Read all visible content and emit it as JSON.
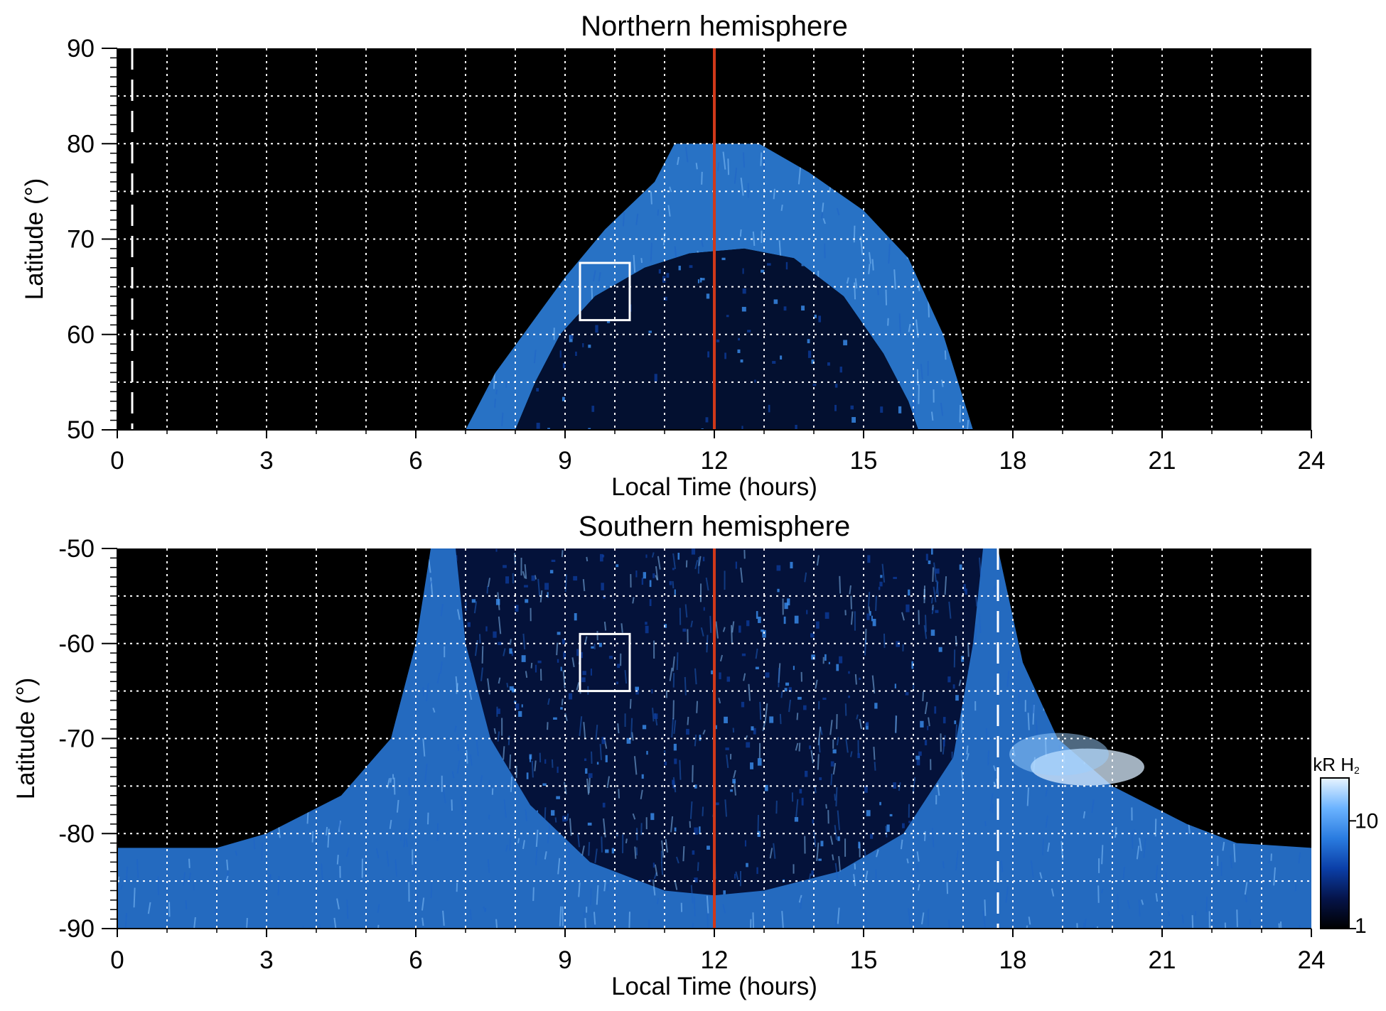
{
  "chart_data": [
    {
      "type": "heatmap",
      "title": "Northern hemisphere",
      "xlabel": "Local Time (hours)",
      "ylabel": "Latitude (°)",
      "xlim": [
        0,
        24
      ],
      "ylim": [
        50,
        90
      ],
      "xticks": [
        0,
        3,
        6,
        9,
        12,
        15,
        18,
        21,
        24
      ],
      "xtick_labels": [
        "0",
        "3",
        "6",
        "9",
        "12",
        "15",
        "18",
        "21",
        "24"
      ],
      "yticks": [
        50,
        60,
        70,
        80,
        90
      ],
      "ytick_labels": [
        "50",
        "60",
        "70",
        "80",
        "90"
      ],
      "grid": true,
      "grid_x_step": 1,
      "grid_y_step": 5,
      "background_color": "#000000",
      "auroral_oval": {
        "description_free": true,
        "outer_edge": [
          [
            7.0,
            50
          ],
          [
            7.6,
            56
          ],
          [
            8.3,
            61
          ],
          [
            9.0,
            66
          ],
          [
            9.8,
            71
          ],
          [
            10.8,
            76
          ],
          [
            11.2,
            80
          ],
          [
            12.0,
            80
          ],
          [
            12.9,
            80
          ],
          [
            13.9,
            77
          ],
          [
            15.0,
            73
          ],
          [
            15.9,
            68
          ],
          [
            16.6,
            60
          ],
          [
            17.2,
            50
          ]
        ],
        "inner_edge": [
          [
            8.0,
            50
          ],
          [
            8.4,
            55
          ],
          [
            8.9,
            60
          ],
          [
            9.6,
            64
          ],
          [
            10.6,
            67
          ],
          [
            11.5,
            68.5
          ],
          [
            12.6,
            69
          ],
          [
            13.6,
            68
          ],
          [
            14.6,
            64
          ],
          [
            15.4,
            58
          ],
          [
            15.9,
            53
          ],
          [
            16.1,
            50
          ]
        ],
        "oval_color": "#2f86e8",
        "bright_color": "#8cc8ff"
      },
      "noon_line": {
        "x": 12,
        "color": "#d0391a"
      },
      "dashed_line": {
        "x": 0.3,
        "y_range": [
          50,
          90
        ],
        "color": "#ffffff"
      },
      "box": {
        "x": [
          9.3,
          10.3
        ],
        "y": [
          61.5,
          67.5
        ],
        "color": "#ffffff"
      }
    },
    {
      "type": "heatmap",
      "title": "Southern hemisphere",
      "xlabel": "Local Time (hours)",
      "ylabel": "Latitude (°)",
      "xlim": [
        0,
        24
      ],
      "ylim": [
        -90,
        -50
      ],
      "xticks": [
        0,
        3,
        6,
        9,
        12,
        15,
        18,
        21,
        24
      ],
      "xtick_labels": [
        "0",
        "3",
        "6",
        "9",
        "12",
        "15",
        "18",
        "21",
        "24"
      ],
      "yticks": [
        -90,
        -80,
        -70,
        -60,
        -50
      ],
      "ytick_labels": [
        "-90",
        "-80",
        "-70",
        "-60",
        "-50"
      ],
      "grid": true,
      "grid_x_step": 1,
      "grid_y_step": 5,
      "background_color": "#000000",
      "auroral_oval": {
        "outer_edge": [
          [
            0.0,
            -81.5
          ],
          [
            2.0,
            -81.5
          ],
          [
            3.0,
            -80
          ],
          [
            4.5,
            -76
          ],
          [
            5.5,
            -70
          ],
          [
            6.0,
            -60
          ],
          [
            6.3,
            -50
          ],
          [
            17.7,
            -50
          ],
          [
            18.2,
            -62
          ],
          [
            18.9,
            -70
          ],
          [
            20.0,
            -75
          ],
          [
            21.5,
            -79
          ],
          [
            22.5,
            -81
          ],
          [
            24.0,
            -81.5
          ]
        ],
        "inner_edge": [
          [
            6.8,
            -50
          ],
          [
            7.0,
            -60
          ],
          [
            7.5,
            -70
          ],
          [
            8.3,
            -77
          ],
          [
            9.5,
            -83
          ],
          [
            11.0,
            -86
          ],
          [
            12.0,
            -86.5
          ],
          [
            13.0,
            -86
          ],
          [
            14.5,
            -84
          ],
          [
            15.8,
            -80
          ],
          [
            16.8,
            -72
          ],
          [
            17.2,
            -60
          ],
          [
            17.4,
            -50
          ]
        ],
        "bright_spot": {
          "x": 19.5,
          "y": -73,
          "color": "#d8ecff"
        },
        "oval_color": "#2a7ce0",
        "bright_color": "#8cc8ff"
      },
      "noon_line": {
        "x": 12,
        "color": "#d0391a"
      },
      "dashed_line": {
        "x": 17.7,
        "y_range": [
          -90,
          -50
        ],
        "color": "#ffffff"
      },
      "box": {
        "x": [
          9.3,
          10.3
        ],
        "y": [
          -65,
          -59
        ],
        "color": "#ffffff"
      },
      "colorbar": {
        "label": "kR H",
        "label_subscript": "2",
        "ticks": [
          1,
          10
        ],
        "tick_labels": [
          "1",
          "10"
        ],
        "scale": "log",
        "range": [
          1,
          25
        ],
        "colors": [
          "#000000",
          "#05144a",
          "#0b3fa8",
          "#2a7ce0",
          "#6bb3ff",
          "#e8f4ff"
        ]
      }
    }
  ]
}
